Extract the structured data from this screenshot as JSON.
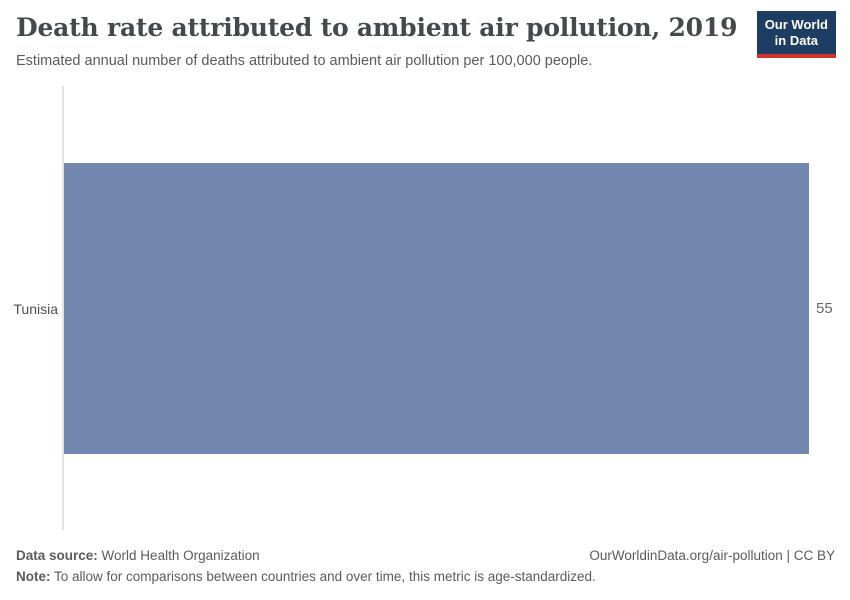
{
  "header": {
    "title": "Death rate attributed to ambient air pollution, 2019",
    "subtitle": "Estimated annual number of deaths attributed to ambient air pollution per 100,000 people.",
    "logo": {
      "line1": "Our World",
      "line2": "in Data"
    }
  },
  "chart_data": {
    "type": "bar",
    "orientation": "horizontal",
    "title": "Death rate attributed to ambient air pollution, 2019",
    "subtitle": "Estimated annual number of deaths attributed to ambient air pollution per 100,000 people.",
    "categories": [
      "Tunisia"
    ],
    "values": [
      55
    ],
    "value_labels": [
      "55"
    ],
    "xlabel": "",
    "ylabel": "",
    "xlim": [
      0,
      55
    ],
    "grid": false,
    "legend": "none"
  },
  "footer": {
    "source_label": "Data source:",
    "source_text": "World Health Organization",
    "note_label": "Note:",
    "note_text": "To allow for comparisons between countries and over time, this metric is age-standardized.",
    "link_text": "OurWorldinData.org/air-pollution | CC BY"
  },
  "colors": {
    "bar": "#7288ae",
    "axis_line": "#e3e3e3",
    "logo_navy": "#1d3d63",
    "logo_red": "#d0342c"
  }
}
